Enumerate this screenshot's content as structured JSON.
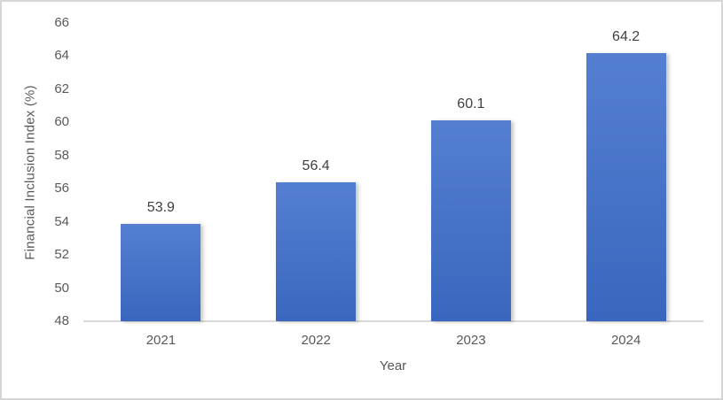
{
  "chart_data": {
    "type": "bar",
    "title": "",
    "categories": [
      "2021",
      "2022",
      "2023",
      "2024"
    ],
    "values": [
      53.9,
      56.4,
      60.1,
      64.2
    ],
    "data_labels": [
      "53.9",
      "56.4",
      "60.1",
      "64.2"
    ],
    "xlabel": "Year",
    "ylabel": "Financial Inclusion Index (%)",
    "ylim": [
      48,
      66
    ],
    "ytick_step": 2,
    "yticks": [
      48,
      50,
      52,
      54,
      56,
      58,
      60,
      62,
      64,
      66
    ],
    "grid": false,
    "legend": "none",
    "colors": {
      "bar_top": "#547fd1",
      "bar_bottom": "#3a66be",
      "axis_line": "#d9d9d9",
      "tick_label": "#595959",
      "data_label": "#404040",
      "frame_border": "#d6d6d6"
    }
  }
}
